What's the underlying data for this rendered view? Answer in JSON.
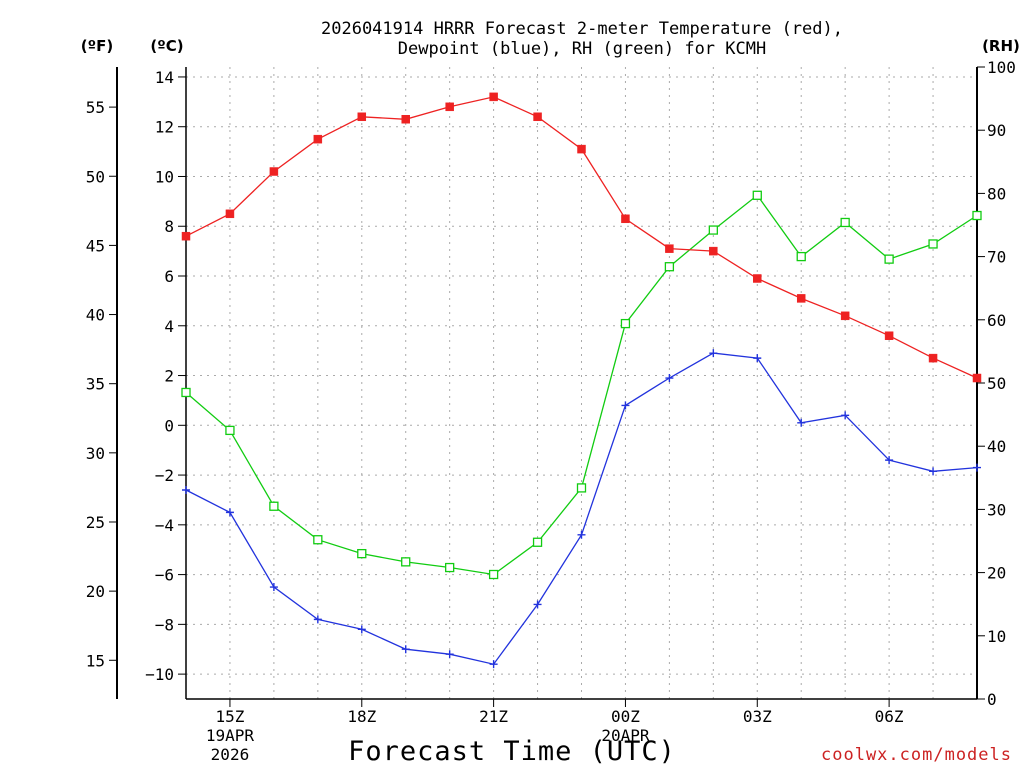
{
  "title": {
    "line1": "2026041914 HRRR Forecast 2-meter Temperature (red),",
    "line2": "Dewpoint (blue), RH (green) for KCMH"
  },
  "axes": {
    "f_unit": "(ºF)",
    "c_unit": "(ºC)",
    "rh_unit": "(RH)",
    "f_ticks": [
      "15",
      "20",
      "25",
      "30",
      "35",
      "40",
      "45",
      "50",
      "55"
    ],
    "c_ticks": [
      "−10",
      "−8",
      "−6",
      "−4",
      "−2",
      "0",
      "2",
      "4",
      "6",
      "8",
      "10",
      "12",
      "14"
    ],
    "rh_ticks": [
      "0",
      "10",
      "20",
      "30",
      "40",
      "50",
      "60",
      "70",
      "80",
      "90",
      "100"
    ]
  },
  "x_ticks": [
    {
      "label": "15Z",
      "sub1": "19APR",
      "sub2": "2026",
      "hour": 1
    },
    {
      "label": "18Z",
      "sub1": "",
      "sub2": "",
      "hour": 4
    },
    {
      "label": "21Z",
      "sub1": "",
      "sub2": "",
      "hour": 7
    },
    {
      "label": "00Z",
      "sub1": "20APR",
      "sub2": "",
      "hour": 10
    },
    {
      "label": "03Z",
      "sub1": "",
      "sub2": "",
      "hour": 13
    },
    {
      "label": "06Z",
      "sub1": "",
      "sub2": "",
      "hour": 16
    }
  ],
  "xlabel": "Forecast Time (UTC)",
  "credit": "coolwx.com/models",
  "colors": {
    "temperature": "#ee2222",
    "dewpoint": "#2233dd",
    "rh": "#11cc11",
    "grid": "#aaaaaa"
  },
  "chart_data": {
    "type": "line",
    "title": "2026041914 HRRR Forecast 2-meter Temperature (red), Dewpoint (blue), RH (green) for KCMH",
    "xlabel": "Forecast Time (UTC)",
    "x": [
      0,
      1,
      2,
      3,
      4,
      5,
      6,
      7,
      8,
      9,
      10,
      11,
      12,
      13,
      14,
      15,
      16,
      17,
      18
    ],
    "x_hours_utc": [
      "14Z",
      "15Z",
      "16Z",
      "17Z",
      "18Z",
      "19Z",
      "20Z",
      "21Z",
      "22Z",
      "23Z",
      "00Z",
      "01Z",
      "02Z",
      "03Z",
      "04Z",
      "05Z",
      "06Z",
      "07Z",
      "08Z"
    ],
    "xlim": [
      0,
      18
    ],
    "ylim_c": [
      -11,
      14.4
    ],
    "ylim_f": [
      12.2,
      57.9
    ],
    "ylim_rh": [
      0,
      100
    ],
    "series": [
      {
        "name": "Temperature",
        "unit": "C",
        "values": [
          7.6,
          8.5,
          10.2,
          11.5,
          12.4,
          12.3,
          12.8,
          13.2,
          12.4,
          11.1,
          8.3,
          7.1,
          7.0,
          5.9,
          5.1,
          4.4,
          3.6,
          2.7,
          1.9
        ]
      },
      {
        "name": "Dewpoint",
        "unit": "C",
        "values": [
          -2.6,
          -3.5,
          -6.5,
          -7.8,
          -8.2,
          -9.0,
          -9.2,
          -9.6,
          -7.2,
          -4.4,
          0.8,
          1.9,
          2.9,
          2.7,
          0.1,
          0.4,
          -1.4,
          -1.85,
          -1.7
        ]
      },
      {
        "name": "RH",
        "unit": "%",
        "values": [
          48.5,
          42.5,
          30.5,
          25.2,
          23.0,
          21.7,
          20.8,
          19.7,
          24.8,
          33.4,
          59.4,
          68.4,
          74.2,
          79.7,
          70.0,
          75.4,
          69.6,
          72.0,
          76.5
        ]
      }
    ]
  }
}
